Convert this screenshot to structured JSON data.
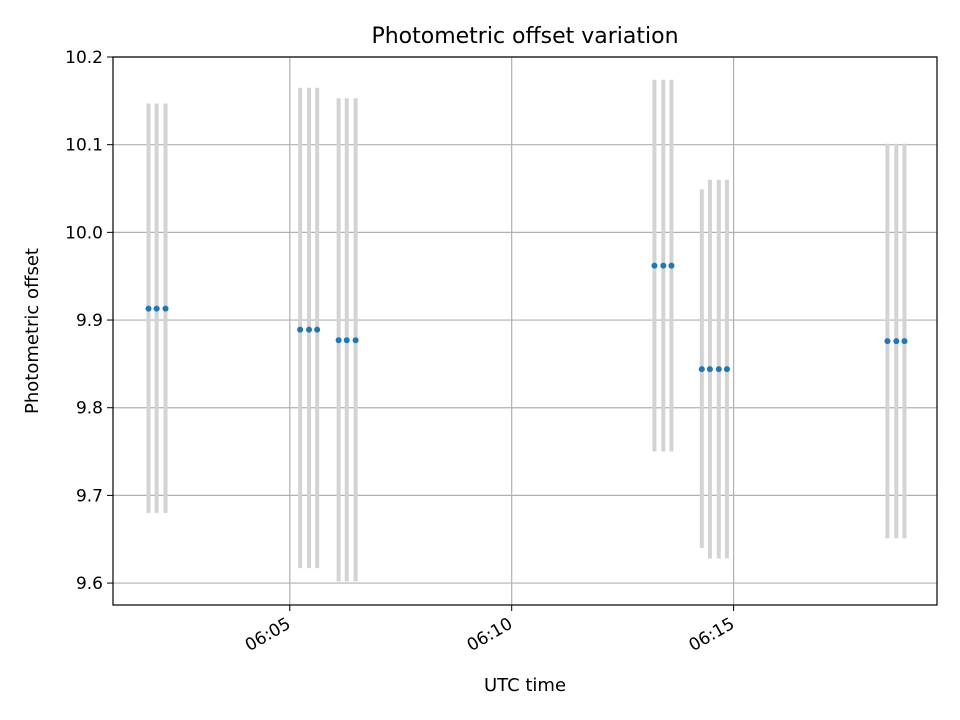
{
  "chart_data": {
    "type": "scatter",
    "title": "Photometric offset variation",
    "xlabel": "UTC time",
    "ylabel": "Photometric offset",
    "ylim": [
      9.575,
      10.2
    ],
    "xlim": [
      "06:01:01",
      "06:19:35"
    ],
    "yticks": [
      "9.6",
      "9.7",
      "9.8",
      "9.9",
      "10.0",
      "10.1",
      "10.2"
    ],
    "xticks": [
      "06:05",
      "06:10",
      "06:15"
    ],
    "grid": true,
    "series": [
      {
        "marker_color": "#1f77b4",
        "errorbar_color": "#d3d3d3",
        "points": [
          {
            "x": "06:01:49",
            "y": 9.913,
            "ylow": 9.68,
            "yhigh": 10.147
          },
          {
            "x": "06:02:00",
            "y": 9.913,
            "ylow": 9.68,
            "yhigh": 10.147
          },
          {
            "x": "06:02:12",
            "y": 9.913,
            "ylow": 9.68,
            "yhigh": 10.147
          },
          {
            "x": "06:05:14",
            "y": 9.889,
            "ylow": 9.617,
            "yhigh": 10.165
          },
          {
            "x": "06:05:26",
            "y": 9.889,
            "ylow": 9.617,
            "yhigh": 10.165
          },
          {
            "x": "06:05:37",
            "y": 9.889,
            "ylow": 9.617,
            "yhigh": 10.165
          },
          {
            "x": "06:06:06",
            "y": 9.877,
            "ylow": 9.602,
            "yhigh": 10.153
          },
          {
            "x": "06:06:17",
            "y": 9.877,
            "ylow": 9.602,
            "yhigh": 10.153
          },
          {
            "x": "06:06:29",
            "y": 9.877,
            "ylow": 9.602,
            "yhigh": 10.153
          },
          {
            "x": "06:13:13",
            "y": 9.962,
            "ylow": 9.75,
            "yhigh": 10.174
          },
          {
            "x": "06:13:25",
            "y": 9.962,
            "ylow": 9.75,
            "yhigh": 10.174
          },
          {
            "x": "06:13:36",
            "y": 9.962,
            "ylow": 9.75,
            "yhigh": 10.174
          },
          {
            "x": "06:14:17",
            "y": 9.844,
            "ylow": 9.64,
            "yhigh": 10.049
          },
          {
            "x": "06:14:28",
            "y": 9.844,
            "ylow": 9.628,
            "yhigh": 10.06
          },
          {
            "x": "06:14:40",
            "y": 9.844,
            "ylow": 9.628,
            "yhigh": 10.06
          },
          {
            "x": "06:14:51",
            "y": 9.844,
            "ylow": 9.628,
            "yhigh": 10.06
          },
          {
            "x": "06:18:28",
            "y": 9.876,
            "ylow": 9.651,
            "yhigh": 10.101
          },
          {
            "x": "06:18:40",
            "y": 9.876,
            "ylow": 9.651,
            "yhigh": 10.101
          },
          {
            "x": "06:18:51",
            "y": 9.876,
            "ylow": 9.651,
            "yhigh": 10.101
          }
        ]
      }
    ]
  }
}
